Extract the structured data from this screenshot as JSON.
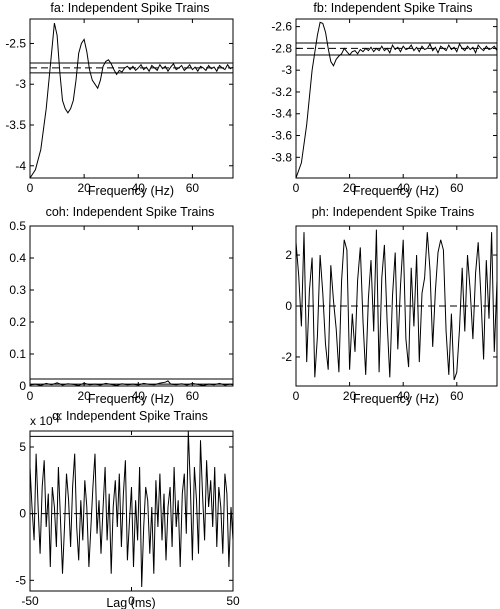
{
  "figure": {
    "exponent_label": "x 10",
    "exponent_power": "-3"
  },
  "chart_data": [
    {
      "id": "fa",
      "type": "line",
      "title": "fa: Independent Spike Trains",
      "xlabel": "Frequency (Hz)",
      "ylabel": "",
      "xlim": [
        0,
        75
      ],
      "ylim": [
        -4.15,
        -2.2
      ],
      "xticks": [
        0,
        20,
        40,
        60
      ],
      "yticks": [
        -4,
        -3.5,
        -3,
        -2.5
      ],
      "yticklabels": [
        "-4",
        "-3.5",
        "-3",
        "-2.5"
      ],
      "grid": false,
      "x": [
        0,
        2,
        4,
        6,
        8,
        9,
        10,
        11,
        12,
        13,
        14,
        15,
        16,
        17,
        18,
        19,
        20,
        21,
        22,
        23,
        24,
        25,
        26,
        27,
        28,
        29,
        30,
        31,
        32,
        33,
        34,
        35,
        36,
        37,
        38,
        39,
        40,
        41,
        42,
        43,
        44,
        45,
        46,
        47,
        48,
        49,
        50,
        51,
        52,
        53,
        54,
        55,
        56,
        57,
        58,
        59,
        60,
        61,
        62,
        63,
        64,
        65,
        66,
        67,
        68,
        69,
        70,
        71,
        72,
        73,
        74,
        75
      ],
      "y": [
        -4.15,
        -4.05,
        -3.8,
        -3.3,
        -2.6,
        -2.25,
        -2.4,
        -2.85,
        -3.2,
        -3.3,
        -3.35,
        -3.3,
        -3.2,
        -2.95,
        -2.62,
        -2.5,
        -2.45,
        -2.6,
        -2.82,
        -2.95,
        -3.0,
        -3.05,
        -2.95,
        -2.78,
        -2.72,
        -2.7,
        -2.75,
        -2.82,
        -2.88,
        -2.83,
        -2.85,
        -2.8,
        -2.78,
        -2.82,
        -2.78,
        -2.83,
        -2.8,
        -2.76,
        -2.82,
        -2.79,
        -2.84,
        -2.77,
        -2.8,
        -2.83,
        -2.76,
        -2.81,
        -2.78,
        -2.84,
        -2.79,
        -2.75,
        -2.82,
        -2.8,
        -2.77,
        -2.83,
        -2.8,
        -2.76,
        -2.82,
        -2.79,
        -2.84,
        -2.78,
        -2.8,
        -2.83,
        -2.77,
        -2.81,
        -2.79,
        -2.84,
        -2.77,
        -2.8,
        -2.82,
        -2.76,
        -2.81,
        -2.79
      ],
      "hlines": {
        "upper": -2.74,
        "mean": -2.8,
        "lower": -2.86
      }
    },
    {
      "id": "fb",
      "type": "line",
      "title": "fb: Independent Spike Trains",
      "xlabel": "Frequency (Hz)",
      "ylabel": "",
      "xlim": [
        0,
        75
      ],
      "ylim": [
        -3.99,
        -2.53
      ],
      "xticks": [
        0,
        20,
        40,
        60
      ],
      "yticks": [
        -3.8,
        -3.6,
        -3.4,
        -3.2,
        -3.0,
        -2.8,
        -2.6
      ],
      "yticklabels": [
        "-3.8",
        "-3.6",
        "-3.4",
        "-3.2",
        "-3",
        "-2.8",
        "-2.6"
      ],
      "grid": false,
      "x": [
        0,
        2,
        4,
        6,
        8,
        9,
        10,
        11,
        12,
        13,
        14,
        15,
        16,
        17,
        18,
        19,
        20,
        21,
        22,
        23,
        24,
        25,
        26,
        27,
        28,
        29,
        30,
        31,
        32,
        33,
        34,
        35,
        36,
        37,
        38,
        39,
        40,
        41,
        42,
        43,
        44,
        45,
        46,
        47,
        48,
        49,
        50,
        51,
        52,
        53,
        54,
        55,
        56,
        57,
        58,
        59,
        60,
        61,
        62,
        63,
        64,
        65,
        66,
        67,
        68,
        69,
        70,
        71,
        72,
        73,
        74,
        75
      ],
      "y": [
        -4.0,
        -3.85,
        -3.5,
        -3.0,
        -2.68,
        -2.56,
        -2.57,
        -2.65,
        -2.8,
        -2.92,
        -2.96,
        -2.9,
        -2.87,
        -2.85,
        -2.8,
        -2.83,
        -2.86,
        -2.83,
        -2.82,
        -2.85,
        -2.81,
        -2.83,
        -2.8,
        -2.82,
        -2.79,
        -2.83,
        -2.8,
        -2.82,
        -2.78,
        -2.82,
        -2.8,
        -2.84,
        -2.77,
        -2.81,
        -2.79,
        -2.83,
        -2.78,
        -2.81,
        -2.8,
        -2.77,
        -2.82,
        -2.79,
        -2.83,
        -2.78,
        -2.81,
        -2.8,
        -2.76,
        -2.82,
        -2.79,
        -2.84,
        -2.78,
        -2.8,
        -2.82,
        -2.77,
        -2.81,
        -2.79,
        -2.83,
        -2.76,
        -2.8,
        -2.82,
        -2.78,
        -2.81,
        -2.79,
        -2.84,
        -2.77,
        -2.8,
        -2.82,
        -2.78,
        -2.81,
        -2.8,
        -2.78,
        -2.82
      ],
      "hlines": {
        "upper": -2.75,
        "mean": -2.8,
        "lower": -2.86
      }
    },
    {
      "id": "coh",
      "type": "line",
      "title": "coh: Independent Spike Trains",
      "xlabel": "Frequency (Hz)",
      "ylabel": "",
      "xlim": [
        0,
        75
      ],
      "ylim": [
        0,
        0.5
      ],
      "xticks": [
        0,
        20,
        40,
        60
      ],
      "yticks": [
        0,
        0.1,
        0.2,
        0.3,
        0.4,
        0.5
      ],
      "yticklabels": [
        "0",
        "0.1",
        "0.2",
        "0.3",
        "0.4",
        "0.5"
      ],
      "grid": false,
      "x": [
        0,
        2,
        4,
        6,
        8,
        10,
        12,
        14,
        16,
        18,
        20,
        22,
        24,
        26,
        28,
        30,
        32,
        34,
        36,
        38,
        40,
        42,
        44,
        46,
        48,
        50,
        51,
        52,
        54,
        56,
        58,
        60,
        62,
        64,
        66,
        68,
        70,
        72,
        74,
        75
      ],
      "y": [
        0.003,
        0.006,
        0.002,
        0.008,
        0.004,
        0.01,
        0.003,
        0.007,
        0.005,
        0.002,
        0.009,
        0.004,
        0.006,
        0.003,
        0.008,
        0.005,
        0.002,
        0.007,
        0.004,
        0.006,
        0.003,
        0.008,
        0.005,
        0.004,
        0.009,
        0.012,
        0.016,
        0.006,
        0.004,
        0.007,
        0.003,
        0.008,
        0.005,
        0.002,
        0.006,
        0.004,
        0.008,
        0.003,
        0.006,
        0.004
      ],
      "hlines": {
        "upper": 0.022,
        "lower": 0.006
      }
    },
    {
      "id": "ph",
      "type": "line",
      "title": "ph: Independent Spike Trains",
      "xlabel": "Frequency (Hz)",
      "ylabel": "",
      "xlim": [
        0,
        75
      ],
      "ylim": [
        -3.14,
        3.14
      ],
      "xticks": [
        0,
        20,
        40,
        60
      ],
      "yticks": [
        -2,
        0,
        2
      ],
      "yticklabels": [
        "-2",
        "0",
        "2"
      ],
      "grid": false,
      "x": [
        0,
        1,
        2,
        3,
        4,
        5,
        6,
        7,
        8,
        9,
        10,
        11,
        12,
        13,
        14,
        15,
        16,
        17,
        18,
        19,
        20,
        21,
        22,
        23,
        24,
        25,
        26,
        27,
        28,
        29,
        30,
        31,
        32,
        33,
        34,
        35,
        36,
        37,
        38,
        39,
        40,
        41,
        42,
        43,
        44,
        45,
        46,
        47,
        48,
        49,
        50,
        51,
        52,
        53,
        54,
        55,
        56,
        57,
        58,
        59,
        60,
        61,
        62,
        63,
        64,
        65,
        66,
        67,
        68,
        69,
        70,
        71,
        72,
        73,
        74,
        75
      ],
      "y": [
        2.5,
        1.2,
        -0.8,
        2.9,
        -2.2,
        0.6,
        1.9,
        -2.8,
        -1.2,
        2.0,
        0.5,
        -1.5,
        -2.5,
        1.6,
        0.2,
        -0.9,
        -2.6,
        1.0,
        2.6,
        2.2,
        -2.5,
        -0.3,
        -1.8,
        1.0,
        2.3,
        -0.6,
        -2.7,
        0.3,
        1.8,
        -1.0,
        3.0,
        -2.6,
        1.1,
        2.4,
        -0.6,
        -2.8,
        0.4,
        2.1,
        -1.7,
        0.8,
        2.6,
        -1.3,
        -2.4,
        1.5,
        -0.8,
        2.0,
        -2.2,
        0.5,
        1.1,
        2.9,
        1.4,
        -1.6,
        0.6,
        2.1,
        2.6,
        2.2,
        -1.0,
        -2.7,
        -0.3,
        -2.9,
        -2.6,
        -0.9,
        1.5,
        -1.0,
        2.0,
        0.6,
        -1.3,
        1.3,
        2.5,
        0.4,
        -2.1,
        1.8,
        -0.5,
        2.9,
        -1.8,
        1.0
      ],
      "hlines": {
        "mean": 0
      }
    },
    {
      "id": "corr",
      "type": "line",
      "title": "q: Independent Spike Trains",
      "xlabel": "Lag (ms)",
      "ylabel": "",
      "xlim": [
        -50,
        50
      ],
      "ylim": [
        -0.0058,
        0.0062
      ],
      "xticks": [
        -50,
        0,
        50
      ],
      "yticks": [
        -0.005,
        0,
        0.005
      ],
      "yticklabels": [
        "-5",
        "0",
        "5"
      ],
      "grid": false,
      "x": [
        -50,
        -49,
        -48,
        -47,
        -46,
        -45,
        -44,
        -43,
        -42,
        -41,
        -40,
        -39,
        -38,
        -37,
        -36,
        -35,
        -34,
        -33,
        -32,
        -31,
        -30,
        -29,
        -28,
        -27,
        -26,
        -25,
        -24,
        -23,
        -22,
        -21,
        -20,
        -19,
        -18,
        -17,
        -16,
        -15,
        -14,
        -13,
        -12,
        -11,
        -10,
        -9,
        -8,
        -7,
        -6,
        -5,
        -4,
        -3,
        -2,
        -1,
        0,
        1,
        2,
        3,
        4,
        5,
        6,
        7,
        8,
        9,
        10,
        11,
        12,
        13,
        14,
        15,
        16,
        17,
        18,
        19,
        20,
        21,
        22,
        23,
        24,
        25,
        26,
        27,
        28,
        29,
        30,
        31,
        32,
        33,
        34,
        35,
        36,
        37,
        38,
        39,
        40,
        41,
        42,
        43,
        44,
        45,
        46,
        47,
        48,
        49,
        50
      ],
      "y": [
        0.0035,
        0.0005,
        -0.002,
        0.0045,
        0.0005,
        -0.003,
        0.002,
        0.004,
        -0.001,
        0.0015,
        -0.004,
        0.002,
        0.0005,
        -0.0025,
        0.0035,
        -0.0005,
        -0.0045,
        -0.001,
        0.003,
        0.001,
        -0.0025,
        0.002,
        0.0045,
        -0.001,
        -0.0035,
        0.001,
        -0.002,
        0.0025,
        0.0005,
        -0.004,
        -0.001,
        0.002,
        0.0045,
        -0.0015,
        0.001,
        -0.003,
        0.0005,
        0.0035,
        -0.002,
        0.0015,
        -0.0045,
        0.0005,
        0.0025,
        -0.001,
        0.003,
        -0.0025,
        0.0015,
        0.004,
        -0.0035,
        -0.0005,
        0.002,
        -0.004,
        0.001,
        -0.002,
        0.0035,
        -0.0055,
        -0.001,
        0.002,
        0.001,
        -0.003,
        0.0005,
        -0.0045,
        0.0025,
        -0.001,
        0.003,
        -0.002,
        0.0015,
        -0.0035,
        0.0005,
        0.002,
        -0.0025,
        0.0035,
        -0.001,
        0.001,
        -0.004,
        0.0015,
        0.003,
        -0.0015,
        0.0065,
        0.002,
        -0.0035,
        0.0035,
        0.001,
        -0.003,
        0.0055,
        0.0015,
        -0.002,
        0.004,
        0.0005,
        0.0025,
        -0.001,
        0.0035,
        -0.0025,
        0.002,
        0.0005,
        -0.003,
        0.003,
        0.0015,
        -0.004,
        0.0005,
        -0.002
      ],
      "hlines": {
        "upper": 0.0058,
        "mean": 0,
        "lower": -0.0058
      }
    }
  ]
}
